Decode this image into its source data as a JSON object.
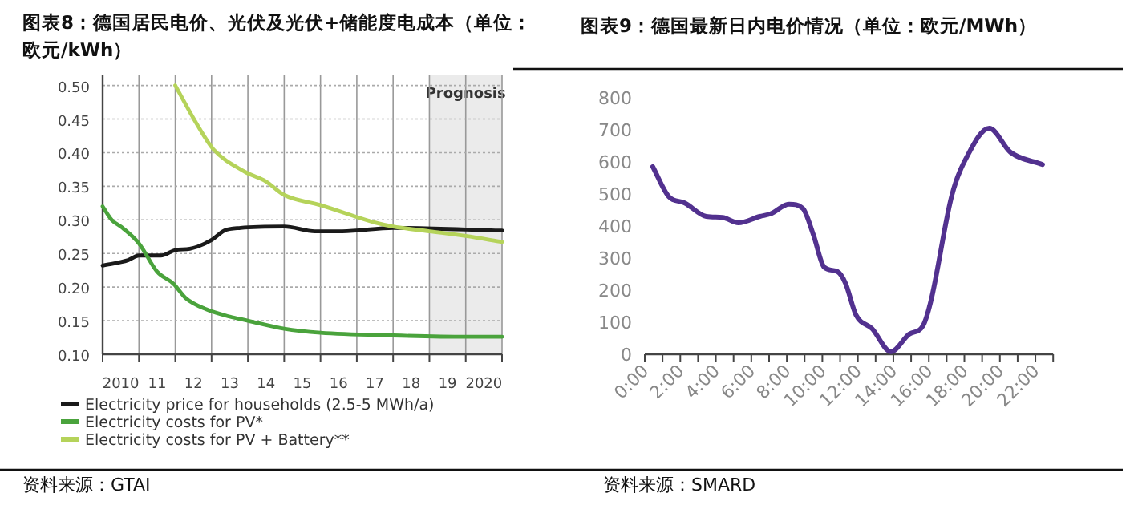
{
  "chart_data": [
    {
      "type": "line",
      "title": "图表8：德国居民电价、光伏及光伏+储能度电成本（单位：欧元/kWh）",
      "xlim": [
        2009.5,
        2020.5
      ],
      "xticks": [
        {
          "value": 2009.5,
          "label": null
        },
        {
          "value": 2010,
          "label": "2010"
        },
        {
          "value": 2010.5,
          "label": null
        },
        {
          "value": 2011,
          "label": "11"
        },
        {
          "value": 2011.5,
          "label": null
        },
        {
          "value": 2012,
          "label": "12"
        },
        {
          "value": 2012.5,
          "label": null
        },
        {
          "value": 2013,
          "label": "13"
        },
        {
          "value": 2013.5,
          "label": null
        },
        {
          "value": 2014,
          "label": "14"
        },
        {
          "value": 2014.5,
          "label": null
        },
        {
          "value": 2015,
          "label": "15"
        },
        {
          "value": 2015.5,
          "label": null
        },
        {
          "value": 2016,
          "label": "16"
        },
        {
          "value": 2016.5,
          "label": null
        },
        {
          "value": 2017,
          "label": "17"
        },
        {
          "value": 2017.5,
          "label": null
        },
        {
          "value": 2018,
          "label": "18"
        },
        {
          "value": 2018.5,
          "label": null
        },
        {
          "value": 2019,
          "label": "19"
        },
        {
          "value": 2019.5,
          "label": null
        },
        {
          "value": 2020,
          "label": "2020"
        },
        {
          "value": 2020.5,
          "label": null
        }
      ],
      "ylim": [
        0.1,
        0.515
      ],
      "yticks": [
        {
          "value": 0.1,
          "label": "0.10"
        },
        {
          "value": 0.15,
          "label": "0.15"
        },
        {
          "value": 0.2,
          "label": "0.20"
        },
        {
          "value": 0.25,
          "label": "0.25"
        },
        {
          "value": 0.3,
          "label": "0.30"
        },
        {
          "value": 0.35,
          "label": "0.35"
        },
        {
          "value": 0.4,
          "label": "0.40"
        },
        {
          "value": 0.45,
          "label": "0.45"
        },
        {
          "value": 0.5,
          "label": "0.50"
        }
      ],
      "grid": true,
      "legend": "bottom",
      "bands": [
        {
          "axis": "x",
          "from": 2018.5,
          "to": 2020.5,
          "label": "Prognosis",
          "color": "#ebebeb"
        }
      ],
      "series": [
        {
          "name": "Electricity price for households (2.5-5 MWh/a)",
          "color": "#1a1a1a",
          "x": [
            2009.5,
            2010.2,
            2010.5,
            2011.1,
            2011.5,
            2011.9,
            2012.5,
            2012.85,
            2013.3,
            2014.5,
            2015.35,
            2016.1,
            2017.5,
            2020.5
          ],
          "values": [
            0.232,
            0.24,
            0.247,
            0.247,
            0.255,
            0.257,
            0.27,
            0.284,
            0.288,
            0.29,
            0.283,
            0.283,
            0.288,
            0.284
          ]
        },
        {
          "name": "Electricity costs for PV*",
          "color": "#4aa33c",
          "x": [
            2009.5,
            2009.75,
            2010.05,
            2010.5,
            2011,
            2011.45,
            2011.8,
            2012.35,
            2013,
            2013.5,
            2014.5,
            2015.5,
            2017.5,
            2019.5,
            2020.5
          ],
          "values": [
            0.32,
            0.3,
            0.288,
            0.265,
            0.223,
            0.205,
            0.183,
            0.167,
            0.156,
            0.15,
            0.138,
            0.132,
            0.128,
            0.126,
            0.126
          ]
        },
        {
          "name": "Electricity costs for PV + Battery**",
          "color": "#b5d35a",
          "x": [
            2011.5,
            2012.1,
            2012.55,
            2013.4,
            2014,
            2014.5,
            2015.5,
            2017,
            2017.5,
            2018.5,
            2019.5,
            2020.5
          ],
          "values": [
            0.5,
            0.442,
            0.405,
            0.372,
            0.357,
            0.337,
            0.322,
            0.296,
            0.29,
            0.283,
            0.276,
            0.267
          ]
        }
      ],
      "annotations": [
        "资料来源：GTAI"
      ]
    },
    {
      "type": "line",
      "title": "图表9：德国最新日内电价情况（单位：欧元/MWh）",
      "xlim": [
        0,
        23
      ],
      "xticks": [
        {
          "value": 0,
          "label": "0:00"
        },
        {
          "value": 1,
          "label": null
        },
        {
          "value": 2,
          "label": "2:00"
        },
        {
          "value": 3,
          "label": null
        },
        {
          "value": 4,
          "label": "4:00"
        },
        {
          "value": 5,
          "label": null
        },
        {
          "value": 6,
          "label": "6:00"
        },
        {
          "value": 7,
          "label": null
        },
        {
          "value": 8,
          "label": "8:00"
        },
        {
          "value": 9,
          "label": null
        },
        {
          "value": 10,
          "label": "10:00"
        },
        {
          "value": 11,
          "label": null
        },
        {
          "value": 12,
          "label": "12:00"
        },
        {
          "value": 13,
          "label": null
        },
        {
          "value": 14,
          "label": "14:00"
        },
        {
          "value": 15,
          "label": null
        },
        {
          "value": 16,
          "label": "16:00"
        },
        {
          "value": 17,
          "label": null
        },
        {
          "value": 18,
          "label": "18:00"
        },
        {
          "value": 19,
          "label": null
        },
        {
          "value": 20,
          "label": "20:00"
        },
        {
          "value": 21,
          "label": null
        },
        {
          "value": 22,
          "label": "22:00"
        },
        {
          "value": 23,
          "label": null
        }
      ],
      "ylim": [
        0,
        800
      ],
      "yticks": [
        0,
        100,
        200,
        300,
        400,
        500,
        600,
        700,
        800
      ],
      "series": [
        {
          "color": "#52318f",
          "x": [
            0.45,
            1.35,
            2.25,
            3.46,
            4.37,
            5.27,
            6.48,
            7.08,
            8.13,
            8.9,
            9.5,
            10.1,
            10.85,
            11.3,
            11.9,
            12.8,
            13.86,
            14.9,
            15.66,
            16.1,
            17.3,
            18.2,
            19.4,
            20.6,
            22.4
          ],
          "values": [
            585,
            492,
            472,
            430,
            427,
            410,
            430,
            438,
            468,
            455,
            372,
            272,
            258,
            222,
            122,
            80,
            8,
            63,
            88,
            163,
            497,
            622,
            705,
            630,
            592
          ]
        }
      ],
      "annotations": [
        "资料来源：SMARD"
      ]
    }
  ]
}
